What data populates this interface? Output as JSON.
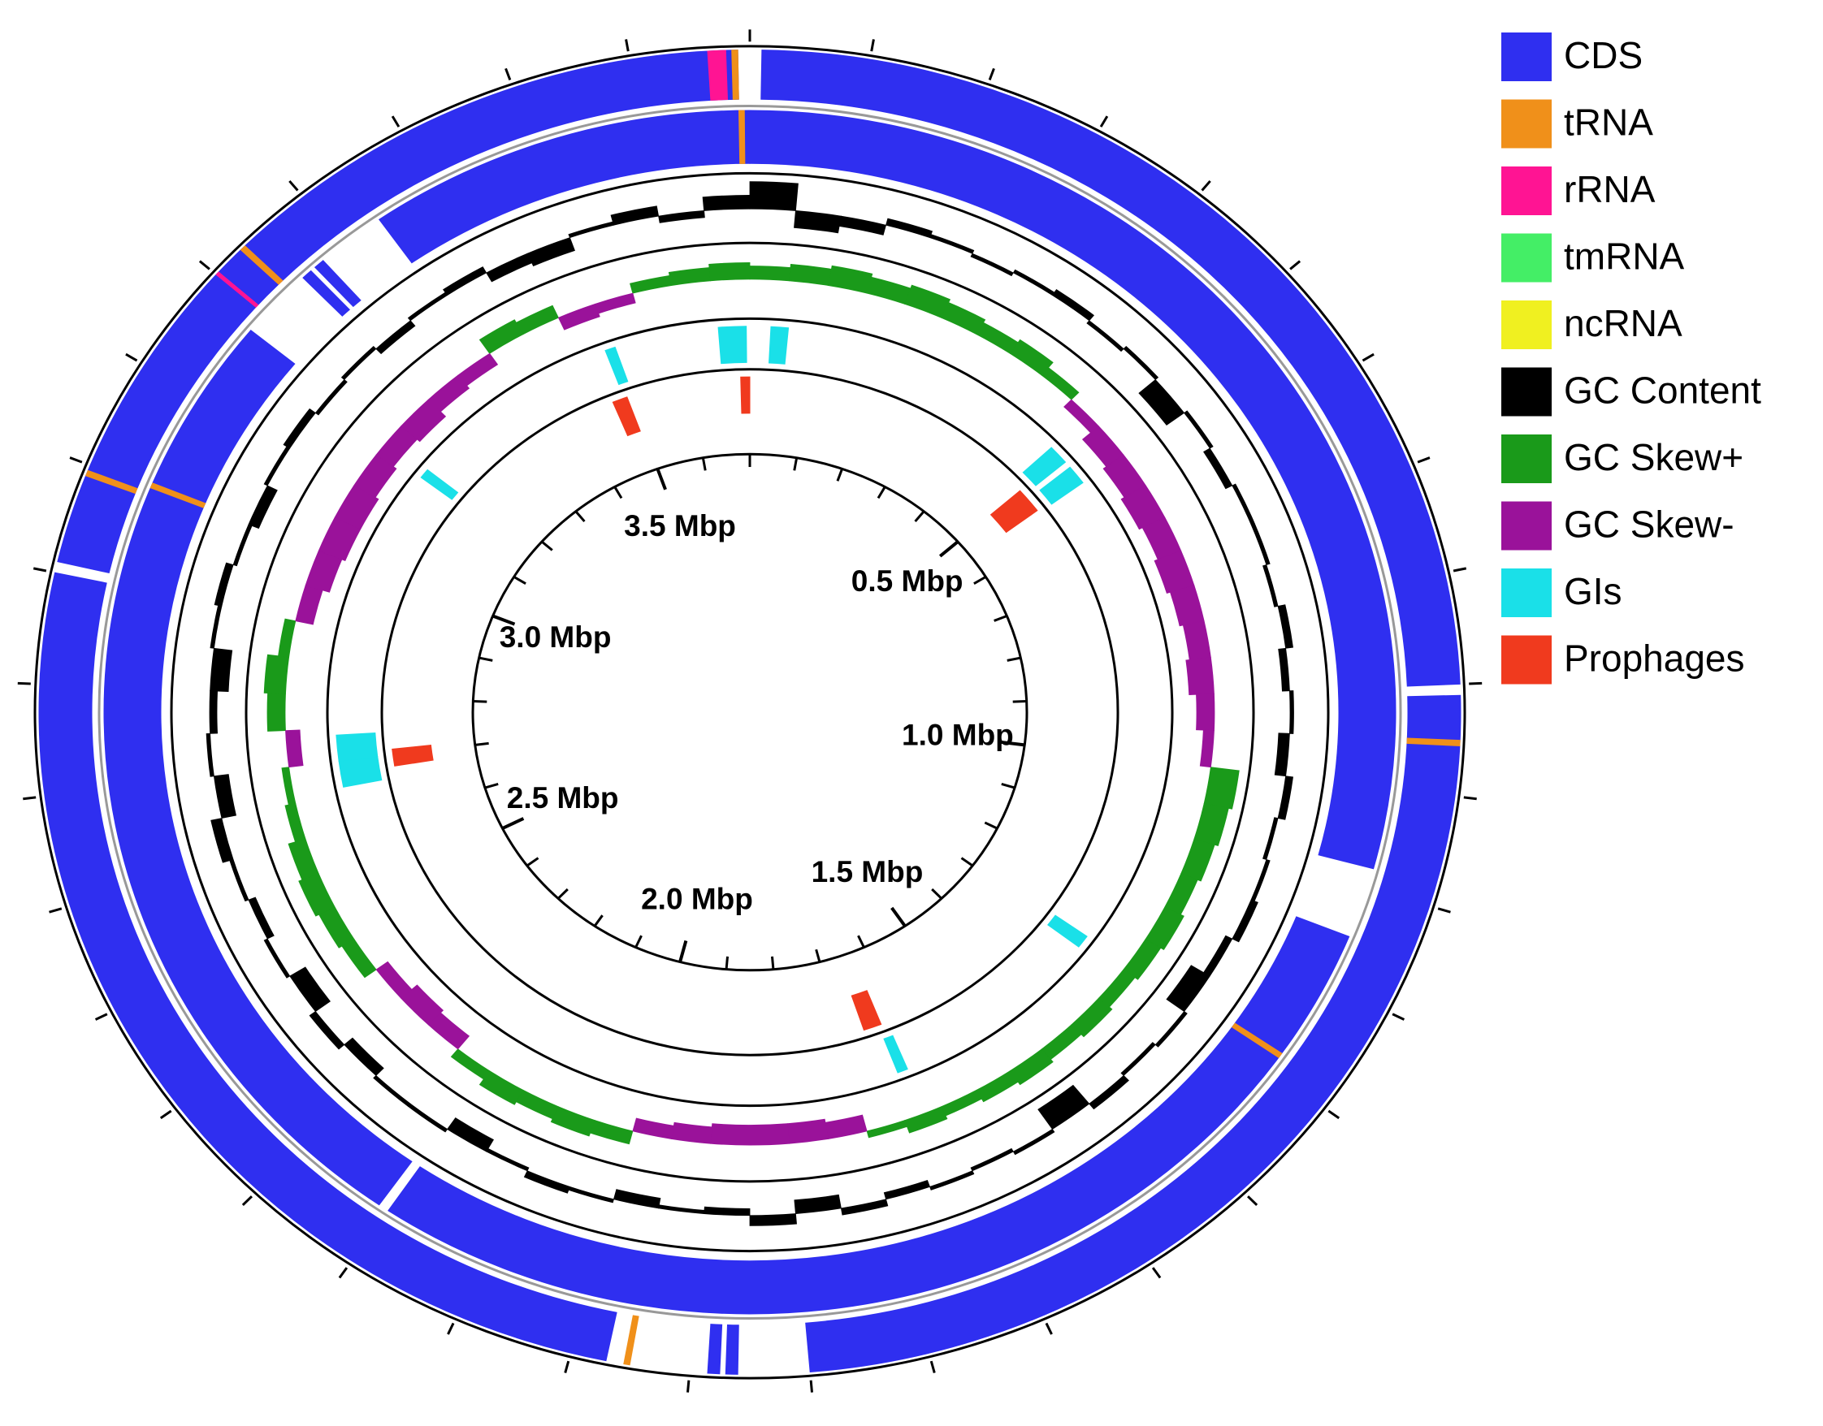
{
  "chart_data": {
    "type": "circular-genome",
    "xlim": [
      0,
      3.7
    ],
    "xticks": [
      {
        "value": 0.5,
        "label": "0.5 Mbp"
      },
      {
        "value": 1.0,
        "label": "1.0 Mbp"
      },
      {
        "value": 1.5,
        "label": "1.5 Mbp"
      },
      {
        "value": 2.0,
        "label": "2.0 Mbp"
      },
      {
        "value": 2.5,
        "label": "2.5 Mbp"
      },
      {
        "value": 3.0,
        "label": "3.0 Mbp"
      },
      {
        "value": 3.5,
        "label": "3.5 Mbp"
      }
    ],
    "minor_xticks": [
      0,
      0.1,
      0.2,
      0.3,
      0.4,
      0.5,
      0.6,
      0.7,
      0.8,
      0.9,
      1,
      1.1,
      1.2,
      1.3,
      1.4,
      1.5,
      1.6,
      1.7,
      1.8,
      1.9,
      2,
      2.1,
      2.2,
      2.3,
      2.4,
      2.5,
      2.6,
      2.7,
      2.8,
      2.9,
      3,
      3.1,
      3.2,
      3.3,
      3.4,
      3.5,
      3.6
    ],
    "x": [
      0,
      0.05,
      0.1,
      0.15,
      0.2,
      0.25,
      0.3,
      0.35,
      0.4,
      0.45,
      0.5,
      0.55,
      0.6,
      0.65,
      0.7,
      0.75,
      0.8,
      0.85,
      0.9,
      0.95,
      1,
      1.05,
      1.1,
      1.15,
      1.2,
      1.25,
      1.3,
      1.35,
      1.4,
      1.45,
      1.5,
      1.55,
      1.6,
      1.65,
      1.7,
      1.75,
      1.8,
      1.85,
      1.9,
      1.95,
      2,
      2.05,
      2.1,
      2.15,
      2.2,
      2.25,
      2.3,
      2.35,
      2.4,
      2.45,
      2.5,
      2.55,
      2.6,
      2.65,
      2.7,
      2.75,
      2.8,
      2.85,
      2.9,
      2.95,
      3,
      3.05,
      3.1,
      3.15,
      3.2,
      3.25,
      3.3,
      3.35,
      3.4,
      3.45,
      3.5,
      3.55,
      3.6,
      3.65
    ],
    "series": [
      {
        "name": "CDS",
        "color": "#2f2ff0",
        "forward": [
          [
            0.01,
            0.9
          ],
          [
            0.91,
            1.8
          ],
          [
            1.86,
            1.87
          ],
          [
            1.875,
            1.885
          ],
          [
            1.97,
            2.9
          ],
          [
            2.91,
            3.69
          ]
        ],
        "reverse": [
          [
            0.0,
            1.08
          ],
          [
            1.15,
            2.2
          ],
          [
            2.21,
            3.18
          ],
          [
            3.25,
            3.26
          ],
          [
            3.265,
            3.275
          ],
          [
            3.34,
            3.7
          ]
        ]
      },
      {
        "name": "tRNA",
        "color": "#f0901a",
        "forward": [
          [
            3.685,
            3.69
          ],
          [
            3.23,
            3.235
          ],
          [
            2.99,
            2.995
          ],
          [
            0.95,
            0.955
          ],
          [
            1.95,
            1.955
          ]
        ],
        "reverse": [
          [
            3.69,
            3.695
          ],
          [
            1.28,
            1.285
          ],
          [
            3.0,
            3.005
          ]
        ]
      },
      {
        "name": "rRNA",
        "color": "#ff1493",
        "forward": [
          [
            3.665,
            3.68
          ],
          [
            3.2,
            3.203
          ]
        ],
        "reverse": []
      },
      {
        "name": "tmRNA",
        "color": "#44ee66",
        "forward": [],
        "reverse": []
      },
      {
        "name": "ncRNA",
        "color": "#f0f020",
        "forward": [],
        "reverse": []
      },
      {
        "name": "GC Content",
        "color": "#000000",
        "values": [
          0.8,
          -0.5,
          -0.3,
          0.2,
          0.1,
          -0.1,
          0.1,
          0.2,
          -0.1,
          0.1,
          -0.6,
          0.1,
          -0.2,
          0.1,
          0.1,
          -0.1,
          0.2,
          -0.2,
          0.1,
          -0.3,
          0.2,
          -0.1,
          0.1,
          0.2,
          -0.2,
          -0.6,
          0.1,
          -0.1,
          0.2,
          -0.7,
          0.1,
          -0.1,
          0.1,
          -0.2,
          0.2,
          -0.4,
          0.3,
          -0.2,
          -0.1,
          -0.3,
          0.1,
          0.2,
          -0.1,
          -0.4,
          0.1,
          0.1,
          -0.3,
          0.2,
          -0.5,
          0.1,
          -0.2,
          0.1,
          0.3,
          -0.4,
          0.1,
          -0.2,
          -0.5,
          0.1,
          0.2,
          -0.1,
          -0.3,
          0.1,
          0.2,
          -0.1,
          0.1,
          -0.2,
          0.1,
          0.2,
          -0.3,
          -0.4,
          0.1,
          0.3,
          -0.2,
          0.4
        ]
      },
      {
        "name": "GC Skew+",
        "color": "#1a9a1a",
        "values": [
          0.4,
          0.5,
          0.6,
          0.5,
          0.6,
          0.5,
          0.4,
          0.5,
          0.3,
          null,
          null,
          null,
          null,
          null,
          null,
          null,
          null,
          null,
          null,
          null,
          0.8,
          0.7,
          0.6,
          0.5,
          0.6,
          0.5,
          0.4,
          0.5,
          0.4,
          0.5,
          0.4,
          0.3,
          0.4,
          0.2,
          null,
          null,
          null,
          null,
          null,
          null,
          0.4,
          0.5,
          0.4,
          0.5,
          0.3,
          null,
          null,
          null,
          0.4,
          0.5,
          0.6,
          0.5,
          0.3,
          0.2,
          null,
          0.5,
          0.6,
          0.3,
          null,
          null,
          null,
          null,
          null,
          null,
          null,
          null,
          null,
          0.5,
          0.4,
          null,
          null,
          0.3,
          0.4,
          0.5
        ]
      },
      {
        "name": "GC Skew-",
        "color": "#9a129a",
        "values": [
          null,
          null,
          null,
          null,
          null,
          null,
          null,
          null,
          null,
          -0.3,
          -0.6,
          -0.7,
          -0.8,
          -0.7,
          -0.8,
          -0.7,
          -0.6,
          -0.7,
          -0.5,
          -0.3,
          null,
          null,
          null,
          null,
          null,
          null,
          null,
          null,
          null,
          null,
          null,
          null,
          null,
          null,
          -0.5,
          -0.6,
          -0.6,
          -0.6,
          -0.5,
          -0.4,
          null,
          null,
          null,
          null,
          null,
          -0.5,
          -0.6,
          -0.4,
          null,
          null,
          null,
          null,
          null,
          null,
          -0.4,
          null,
          null,
          null,
          -0.5,
          -0.7,
          -0.8,
          -0.8,
          -0.7,
          -0.6,
          -0.7,
          -0.5,
          -0.4,
          null,
          null,
          -0.4,
          -0.3,
          null,
          null,
          null
        ]
      },
      {
        "name": "GIs",
        "color": "#1ae0e8",
        "intervals": [
          [
            3.655,
            3.695
          ],
          [
            0.03,
            0.055
          ],
          [
            0.48,
            0.51
          ],
          [
            0.52,
            0.55
          ],
          [
            1.29,
            1.31
          ],
          [
            1.62,
            1.635
          ],
          [
            2.66,
            2.7
          ],
          [
            2.7,
            2.74
          ],
          [
            3.49,
            3.505
          ],
          [
            3.16,
            3.175
          ]
        ]
      },
      {
        "name": "Prophages",
        "color": "#f03a1e",
        "intervals": [
          [
            3.685,
            3.7
          ],
          [
            3.47,
            3.495
          ],
          [
            0.5,
            0.545
          ],
          [
            1.63,
            1.66
          ],
          [
            2.68,
            2.71
          ]
        ]
      }
    ]
  }
}
